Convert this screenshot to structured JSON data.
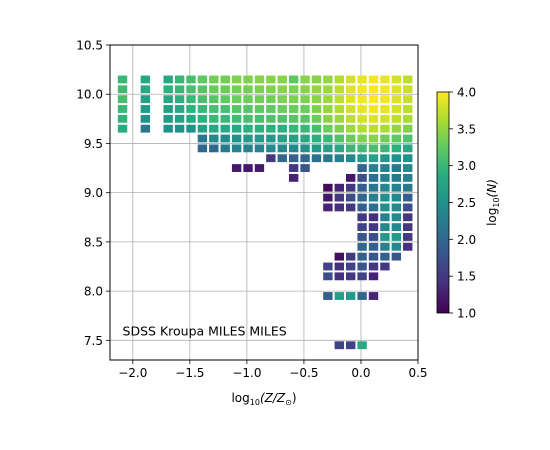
{
  "chart_data": {
    "type": "heatmap",
    "annotation": "SDSS Kroupa MILES MILES",
    "xlabel": "log$_{10}$($Z/Z_\\odot$)",
    "xlabel_text": "log",
    "xlabel_sub": "10",
    "xlabel_tail": "(Z/Z",
    "xlabel_odot": "⊙",
    "xlabel_close": ")",
    "xlim": [
      -2.2,
      0.5
    ],
    "ylim": [
      7.3,
      10.5
    ],
    "xticks": [
      -2.0,
      -1.5,
      -1.0,
      -0.5,
      0.0,
      0.5
    ],
    "xtick_labels": [
      "−2.0",
      "−1.5",
      "−1.0",
      "−0.5",
      "0.0",
      "0.5"
    ],
    "yticks": [
      7.5,
      8.0,
      8.5,
      9.0,
      9.5,
      10.0,
      10.5
    ],
    "ytick_labels": [
      "7.5",
      "8.0",
      "8.5",
      "9.0",
      "9.5",
      "10.0",
      "10.5"
    ],
    "grid": true,
    "colorbar": {
      "label_text": "log",
      "label_sub": "10",
      "label_tail": "(N)",
      "min": 1.0,
      "max": 4.0,
      "ticks": [
        1.0,
        1.5,
        2.0,
        2.5,
        3.0,
        3.5,
        4.0
      ],
      "tick_labels": [
        "1.0",
        "1.5",
        "2.0",
        "2.5",
        "3.0",
        "3.5",
        "4.0"
      ],
      "colormap": "viridis"
    },
    "cell_size": {
      "dx": 0.1,
      "dy": 0.1
    },
    "cells": [
      [
        -2.09,
        10.15,
        3.0
      ],
      [
        -2.09,
        10.05,
        3.05
      ],
      [
        -2.09,
        9.95,
        3.1
      ],
      [
        -2.09,
        9.85,
        3.0
      ],
      [
        -2.09,
        9.75,
        2.95
      ],
      [
        -2.09,
        9.65,
        2.85
      ],
      [
        -1.89,
        10.15,
        2.8
      ],
      [
        -1.89,
        10.05,
        2.8
      ],
      [
        -1.89,
        9.95,
        2.7
      ],
      [
        -1.89,
        9.85,
        2.6
      ],
      [
        -1.89,
        9.75,
        2.5
      ],
      [
        -1.89,
        9.65,
        2.2
      ],
      [
        -1.69,
        10.15,
        2.8
      ],
      [
        -1.69,
        10.05,
        2.9
      ],
      [
        -1.69,
        9.95,
        2.8
      ],
      [
        -1.69,
        9.85,
        2.7
      ],
      [
        -1.69,
        9.75,
        2.6
      ],
      [
        -1.69,
        9.65,
        2.5
      ],
      [
        -1.59,
        10.15,
        3.0
      ],
      [
        -1.59,
        10.05,
        3.0
      ],
      [
        -1.59,
        9.95,
        2.9
      ],
      [
        -1.59,
        9.85,
        2.8
      ],
      [
        -1.59,
        9.75,
        2.7
      ],
      [
        -1.59,
        9.65,
        2.5
      ],
      [
        -1.49,
        10.15,
        3.1
      ],
      [
        -1.49,
        10.05,
        3.1
      ],
      [
        -1.49,
        9.95,
        3.0
      ],
      [
        -1.49,
        9.85,
        2.9
      ],
      [
        -1.49,
        9.75,
        2.8
      ],
      [
        -1.49,
        9.65,
        2.5
      ],
      [
        -1.39,
        10.15,
        3.25
      ],
      [
        -1.39,
        10.05,
        3.2
      ],
      [
        -1.39,
        9.95,
        3.1
      ],
      [
        -1.39,
        9.85,
        3.0
      ],
      [
        -1.39,
        9.75,
        2.9
      ],
      [
        -1.39,
        9.65,
        2.7
      ],
      [
        -1.39,
        9.55,
        2.2
      ],
      [
        -1.39,
        9.45,
        2.0
      ],
      [
        -1.29,
        10.15,
        3.35
      ],
      [
        -1.29,
        10.05,
        3.3
      ],
      [
        -1.29,
        9.95,
        3.2
      ],
      [
        -1.29,
        9.85,
        3.1
      ],
      [
        -1.29,
        9.75,
        3.0
      ],
      [
        -1.29,
        9.65,
        2.8
      ],
      [
        -1.29,
        9.55,
        2.4
      ],
      [
        -1.29,
        9.45,
        2.0
      ],
      [
        -1.19,
        10.15,
        3.35
      ],
      [
        -1.19,
        10.05,
        3.3
      ],
      [
        -1.19,
        9.95,
        3.25
      ],
      [
        -1.19,
        9.85,
        3.1
      ],
      [
        -1.19,
        9.75,
        3.0
      ],
      [
        -1.19,
        9.65,
        2.8
      ],
      [
        -1.19,
        9.55,
        2.4
      ],
      [
        -1.19,
        9.45,
        2.2
      ],
      [
        -1.09,
        10.15,
        3.4
      ],
      [
        -1.09,
        10.05,
        3.35
      ],
      [
        -1.09,
        9.95,
        3.3
      ],
      [
        -1.09,
        9.85,
        3.2
      ],
      [
        -1.09,
        9.75,
        3.05
      ],
      [
        -1.09,
        9.65,
        2.8
      ],
      [
        -1.09,
        9.55,
        2.5
      ],
      [
        -1.09,
        9.45,
        2.3
      ],
      [
        -1.09,
        9.25,
        1.2
      ],
      [
        -0.99,
        10.15,
        3.4
      ],
      [
        -0.99,
        10.05,
        3.35
      ],
      [
        -0.99,
        9.95,
        3.3
      ],
      [
        -0.99,
        9.85,
        3.2
      ],
      [
        -0.99,
        9.75,
        3.1
      ],
      [
        -0.99,
        9.65,
        2.9
      ],
      [
        -0.99,
        9.55,
        2.6
      ],
      [
        -0.99,
        9.45,
        2.3
      ],
      [
        -0.99,
        9.25,
        1.2
      ],
      [
        -0.89,
        10.15,
        3.45
      ],
      [
        -0.89,
        10.05,
        3.4
      ],
      [
        -0.89,
        9.95,
        3.35
      ],
      [
        -0.89,
        9.85,
        3.25
      ],
      [
        -0.89,
        9.75,
        3.1
      ],
      [
        -0.89,
        9.65,
        2.9
      ],
      [
        -0.89,
        9.55,
        2.6
      ],
      [
        -0.89,
        9.45,
        2.3
      ],
      [
        -0.89,
        9.25,
        1.2
      ],
      [
        -0.79,
        10.15,
        3.45
      ],
      [
        -0.79,
        10.05,
        3.4
      ],
      [
        -0.79,
        9.95,
        3.35
      ],
      [
        -0.79,
        9.85,
        3.25
      ],
      [
        -0.79,
        9.75,
        3.15
      ],
      [
        -0.79,
        9.65,
        2.9
      ],
      [
        -0.79,
        9.55,
        2.6
      ],
      [
        -0.79,
        9.45,
        2.4
      ],
      [
        -0.79,
        9.35,
        1.5
      ],
      [
        -0.69,
        10.15,
        3.45
      ],
      [
        -0.69,
        10.05,
        3.45
      ],
      [
        -0.69,
        9.95,
        3.4
      ],
      [
        -0.69,
        9.85,
        3.3
      ],
      [
        -0.69,
        9.75,
        3.15
      ],
      [
        -0.69,
        9.65,
        2.9
      ],
      [
        -0.69,
        9.55,
        2.7
      ],
      [
        -0.69,
        9.45,
        2.4
      ],
      [
        -0.69,
        9.35,
        2.0
      ],
      [
        -0.59,
        10.15,
        3.25
      ],
      [
        -0.59,
        10.05,
        3.4
      ],
      [
        -0.59,
        9.95,
        3.4
      ],
      [
        -0.59,
        9.85,
        3.3
      ],
      [
        -0.59,
        9.75,
        3.2
      ],
      [
        -0.59,
        9.65,
        3.0
      ],
      [
        -0.59,
        9.55,
        2.7
      ],
      [
        -0.59,
        9.45,
        2.4
      ],
      [
        -0.59,
        9.35,
        1.9
      ],
      [
        -0.59,
        9.25,
        1.5
      ],
      [
        -0.59,
        9.15,
        1.3
      ],
      [
        -0.49,
        10.15,
        3.45
      ],
      [
        -0.49,
        10.05,
        3.45
      ],
      [
        -0.49,
        9.95,
        3.4
      ],
      [
        -0.49,
        9.85,
        3.3
      ],
      [
        -0.49,
        9.75,
        3.2
      ],
      [
        -0.49,
        9.65,
        3.0
      ],
      [
        -0.49,
        9.55,
        2.8
      ],
      [
        -0.49,
        9.45,
        2.5
      ],
      [
        -0.49,
        9.35,
        2.0
      ],
      [
        -0.49,
        9.25,
        1.8
      ],
      [
        -0.39,
        10.15,
        3.45
      ],
      [
        -0.39,
        10.05,
        3.5
      ],
      [
        -0.39,
        9.95,
        3.45
      ],
      [
        -0.39,
        9.85,
        3.4
      ],
      [
        -0.39,
        9.75,
        3.3
      ],
      [
        -0.39,
        9.65,
        3.1
      ],
      [
        -0.39,
        9.55,
        2.9
      ],
      [
        -0.39,
        9.45,
        2.6
      ],
      [
        -0.39,
        9.35,
        2.1
      ],
      [
        -0.29,
        10.15,
        3.5
      ],
      [
        -0.29,
        10.05,
        3.55
      ],
      [
        -0.29,
        9.95,
        3.55
      ],
      [
        -0.29,
        9.85,
        3.5
      ],
      [
        -0.29,
        9.75,
        3.45
      ],
      [
        -0.29,
        9.65,
        3.3
      ],
      [
        -0.29,
        9.55,
        3.0
      ],
      [
        -0.29,
        9.45,
        2.7
      ],
      [
        -0.29,
        9.35,
        2.2
      ],
      [
        -0.29,
        9.05,
        1.1
      ],
      [
        -0.29,
        8.95,
        1.2
      ],
      [
        -0.29,
        8.85,
        1.3
      ],
      [
        -0.29,
        8.25,
        1.6
      ],
      [
        -0.29,
        8.15,
        1.7
      ],
      [
        -0.29,
        7.95,
        1.9
      ],
      [
        -0.19,
        10.15,
        3.65
      ],
      [
        -0.19,
        10.05,
        3.7
      ],
      [
        -0.19,
        9.95,
        3.7
      ],
      [
        -0.19,
        9.85,
        3.65
      ],
      [
        -0.19,
        9.75,
        3.55
      ],
      [
        -0.19,
        9.65,
        3.4
      ],
      [
        -0.19,
        9.55,
        3.15
      ],
      [
        -0.19,
        9.45,
        2.8
      ],
      [
        -0.19,
        9.35,
        2.3
      ],
      [
        -0.19,
        9.05,
        1.3
      ],
      [
        -0.19,
        8.95,
        1.5
      ],
      [
        -0.19,
        8.85,
        1.4
      ],
      [
        -0.19,
        8.35,
        1.1
      ],
      [
        -0.19,
        8.25,
        1.4
      ],
      [
        -0.19,
        8.15,
        1.4
      ],
      [
        -0.19,
        7.95,
        2.7
      ],
      [
        -0.19,
        7.45,
        1.6
      ],
      [
        -0.09,
        10.15,
        3.8
      ],
      [
        -0.09,
        10.05,
        3.85
      ],
      [
        -0.09,
        9.95,
        3.85
      ],
      [
        -0.09,
        9.85,
        3.8
      ],
      [
        -0.09,
        9.75,
        3.7
      ],
      [
        -0.09,
        9.65,
        3.55
      ],
      [
        -0.09,
        9.55,
        3.3
      ],
      [
        -0.09,
        9.45,
        3.0
      ],
      [
        -0.09,
        9.35,
        2.4
      ],
      [
        -0.09,
        9.15,
        1.2
      ],
      [
        -0.09,
        9.05,
        1.5
      ],
      [
        -0.09,
        8.95,
        1.7
      ],
      [
        -0.09,
        8.85,
        1.5
      ],
      [
        -0.09,
        8.35,
        1.5
      ],
      [
        -0.09,
        8.25,
        1.6
      ],
      [
        -0.09,
        8.15,
        1.5
      ],
      [
        -0.09,
        7.95,
        2.6
      ],
      [
        -0.09,
        7.45,
        1.6
      ],
      [
        0.01,
        10.15,
        3.9
      ],
      [
        0.01,
        10.05,
        3.95
      ],
      [
        0.01,
        9.95,
        3.95
      ],
      [
        0.01,
        9.85,
        3.9
      ],
      [
        0.01,
        9.75,
        3.8
      ],
      [
        0.01,
        9.65,
        3.65
      ],
      [
        0.01,
        9.55,
        3.4
      ],
      [
        0.01,
        9.45,
        3.05
      ],
      [
        0.01,
        9.35,
        2.6
      ],
      [
        0.01,
        9.25,
        2.0
      ],
      [
        0.01,
        9.15,
        1.7
      ],
      [
        0.01,
        9.05,
        1.9
      ],
      [
        0.01,
        8.95,
        2.0
      ],
      [
        0.01,
        8.85,
        1.9
      ],
      [
        0.01,
        8.75,
        1.5
      ],
      [
        0.01,
        8.65,
        1.6
      ],
      [
        0.01,
        8.55,
        1.8
      ],
      [
        0.01,
        8.45,
        2.0
      ],
      [
        0.01,
        8.35,
        1.9
      ],
      [
        0.01,
        8.25,
        1.8
      ],
      [
        0.01,
        8.15,
        1.6
      ],
      [
        0.01,
        7.95,
        2.0
      ],
      [
        0.01,
        7.45,
        2.8
      ],
      [
        0.11,
        10.15,
        3.95
      ],
      [
        0.11,
        10.05,
        4.0
      ],
      [
        0.11,
        9.95,
        4.0
      ],
      [
        0.11,
        9.85,
        3.95
      ],
      [
        0.11,
        9.75,
        3.85
      ],
      [
        0.11,
        9.65,
        3.7
      ],
      [
        0.11,
        9.55,
        3.45
      ],
      [
        0.11,
        9.45,
        3.1
      ],
      [
        0.11,
        9.35,
        2.7
      ],
      [
        0.11,
        9.25,
        2.3
      ],
      [
        0.11,
        9.15,
        2.1
      ],
      [
        0.11,
        9.05,
        2.2
      ],
      [
        0.11,
        8.95,
        2.3
      ],
      [
        0.11,
        8.85,
        2.1
      ],
      [
        0.11,
        8.75,
        1.4
      ],
      [
        0.11,
        8.65,
        1.5
      ],
      [
        0.11,
        8.55,
        1.7
      ],
      [
        0.11,
        8.45,
        1.9
      ],
      [
        0.11,
        8.35,
        1.8
      ],
      [
        0.11,
        8.25,
        1.5
      ],
      [
        0.11,
        8.15,
        1.3
      ],
      [
        0.11,
        7.95,
        1.3
      ],
      [
        0.21,
        10.15,
        3.9
      ],
      [
        0.21,
        10.05,
        3.95
      ],
      [
        0.21,
        9.95,
        3.95
      ],
      [
        0.21,
        9.85,
        3.9
      ],
      [
        0.21,
        9.75,
        3.8
      ],
      [
        0.21,
        9.65,
        3.6
      ],
      [
        0.21,
        9.55,
        3.35
      ],
      [
        0.21,
        9.45,
        3.0
      ],
      [
        0.21,
        9.35,
        2.6
      ],
      [
        0.21,
        9.25,
        2.3
      ],
      [
        0.21,
        9.15,
        2.3
      ],
      [
        0.21,
        9.05,
        2.4
      ],
      [
        0.21,
        8.95,
        2.5
      ],
      [
        0.21,
        8.85,
        2.5
      ],
      [
        0.21,
        8.75,
        2.3
      ],
      [
        0.21,
        8.65,
        2.4
      ],
      [
        0.21,
        8.55,
        2.6
      ],
      [
        0.21,
        8.45,
        2.3
      ],
      [
        0.21,
        8.35,
        1.9
      ],
      [
        0.21,
        8.25,
        1.5
      ],
      [
        0.31,
        10.15,
        3.8
      ],
      [
        0.31,
        10.05,
        3.85
      ],
      [
        0.31,
        9.95,
        3.85
      ],
      [
        0.31,
        9.85,
        3.8
      ],
      [
        0.31,
        9.75,
        3.7
      ],
      [
        0.31,
        9.65,
        3.5
      ],
      [
        0.31,
        9.55,
        3.25
      ],
      [
        0.31,
        9.45,
        2.9
      ],
      [
        0.31,
        9.35,
        2.5
      ],
      [
        0.31,
        9.25,
        2.2
      ],
      [
        0.31,
        9.15,
        2.2
      ],
      [
        0.31,
        9.05,
        2.3
      ],
      [
        0.31,
        8.95,
        2.4
      ],
      [
        0.31,
        8.85,
        2.4
      ],
      [
        0.31,
        8.75,
        2.4
      ],
      [
        0.31,
        8.65,
        2.4
      ],
      [
        0.31,
        8.55,
        2.6
      ],
      [
        0.31,
        8.45,
        2.4
      ],
      [
        0.31,
        8.35,
        1.8
      ],
      [
        0.41,
        10.15,
        3.7
      ],
      [
        0.41,
        10.05,
        3.75
      ],
      [
        0.41,
        9.95,
        3.75
      ],
      [
        0.41,
        9.85,
        3.7
      ],
      [
        0.41,
        9.75,
        3.6
      ],
      [
        0.41,
        9.65,
        3.4
      ],
      [
        0.41,
        9.55,
        3.15
      ],
      [
        0.41,
        9.45,
        2.8
      ],
      [
        0.41,
        9.35,
        2.5
      ],
      [
        0.41,
        9.25,
        2.4
      ],
      [
        0.41,
        9.15,
        2.3
      ],
      [
        0.41,
        9.05,
        2.2
      ],
      [
        0.41,
        8.95,
        1.9
      ],
      [
        0.41,
        8.85,
        1.7
      ],
      [
        0.41,
        8.75,
        1.5
      ],
      [
        0.41,
        8.65,
        1.5
      ],
      [
        0.41,
        8.55,
        1.5
      ],
      [
        0.41,
        8.45,
        1.4
      ]
    ]
  }
}
